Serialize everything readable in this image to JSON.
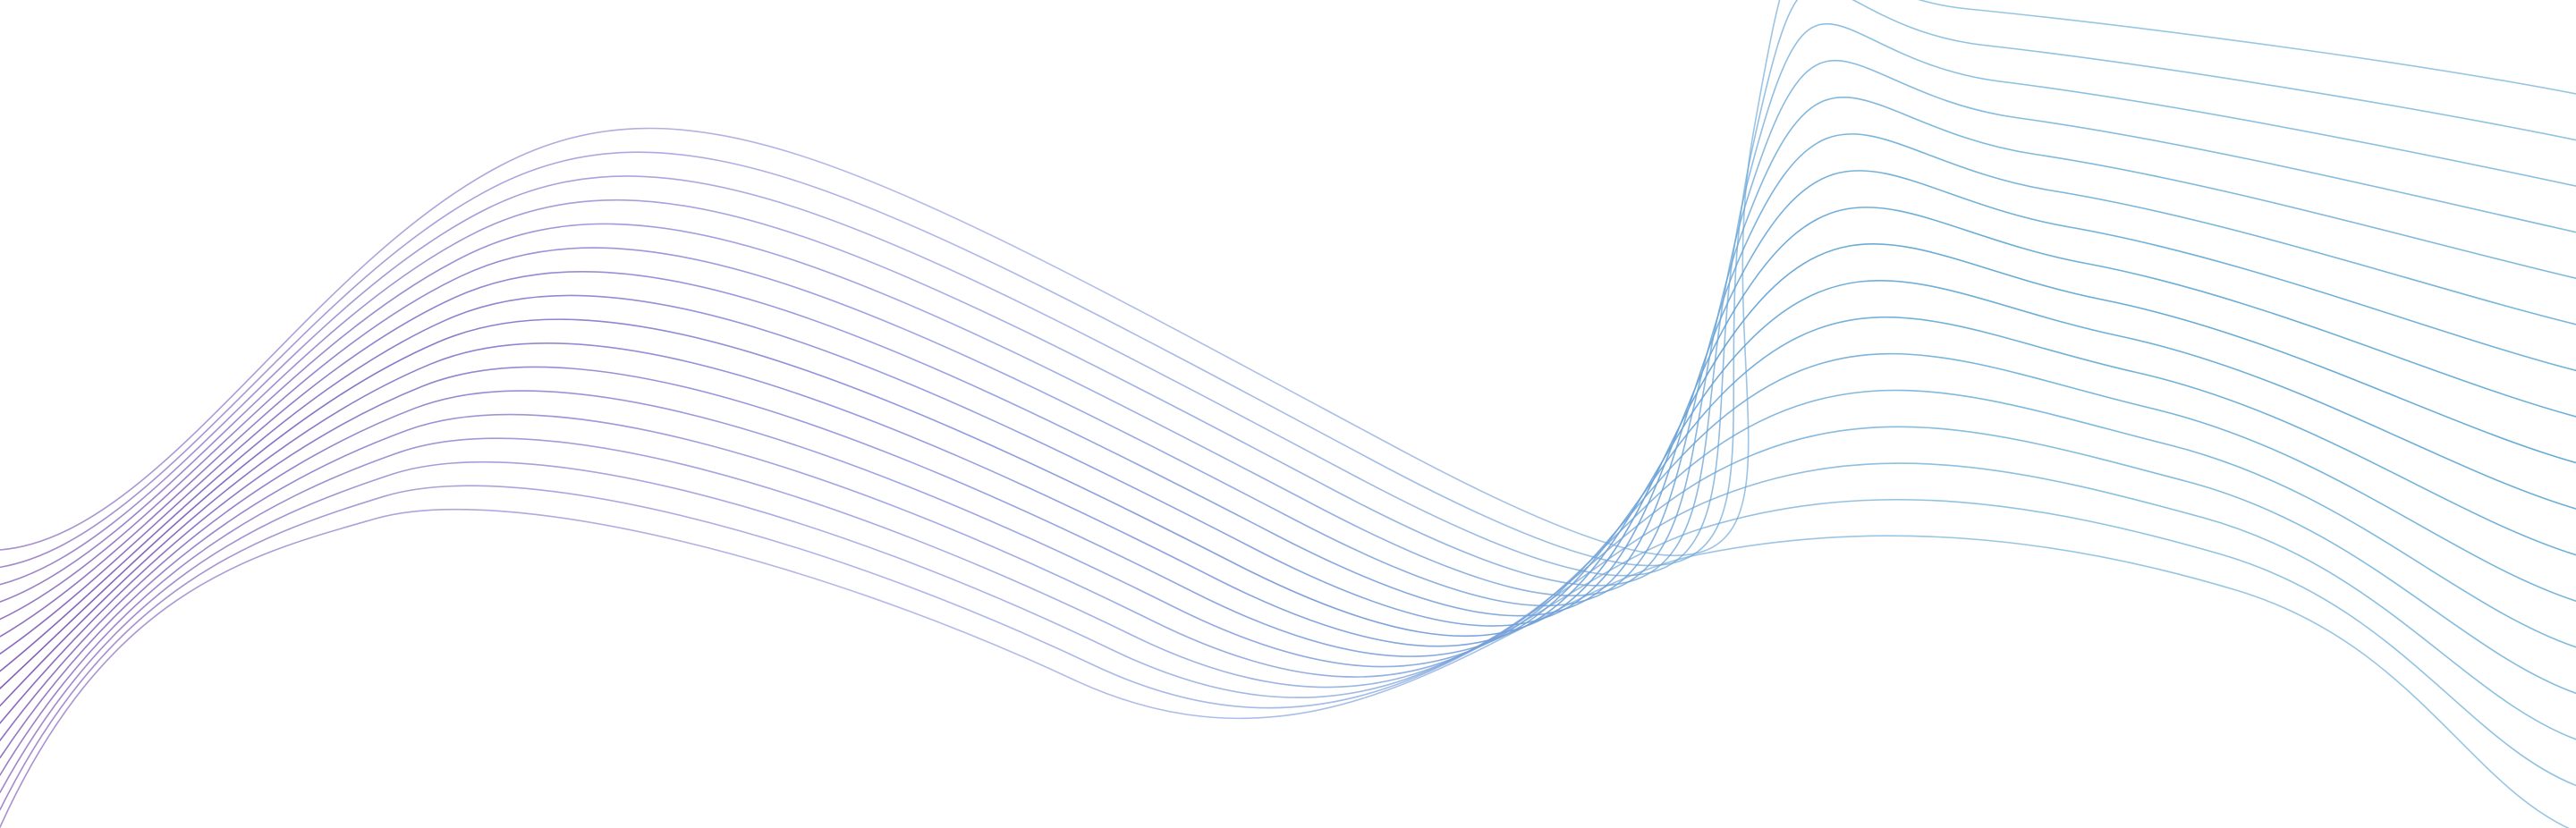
{
  "background": {
    "color": "#ffffff",
    "pattern": "flowing-line-waves",
    "colors": {
      "teal": "#5fa8d3",
      "periwinkle": "#8f95e0",
      "violet": "#7a56b3"
    },
    "wave_count": 17
  }
}
